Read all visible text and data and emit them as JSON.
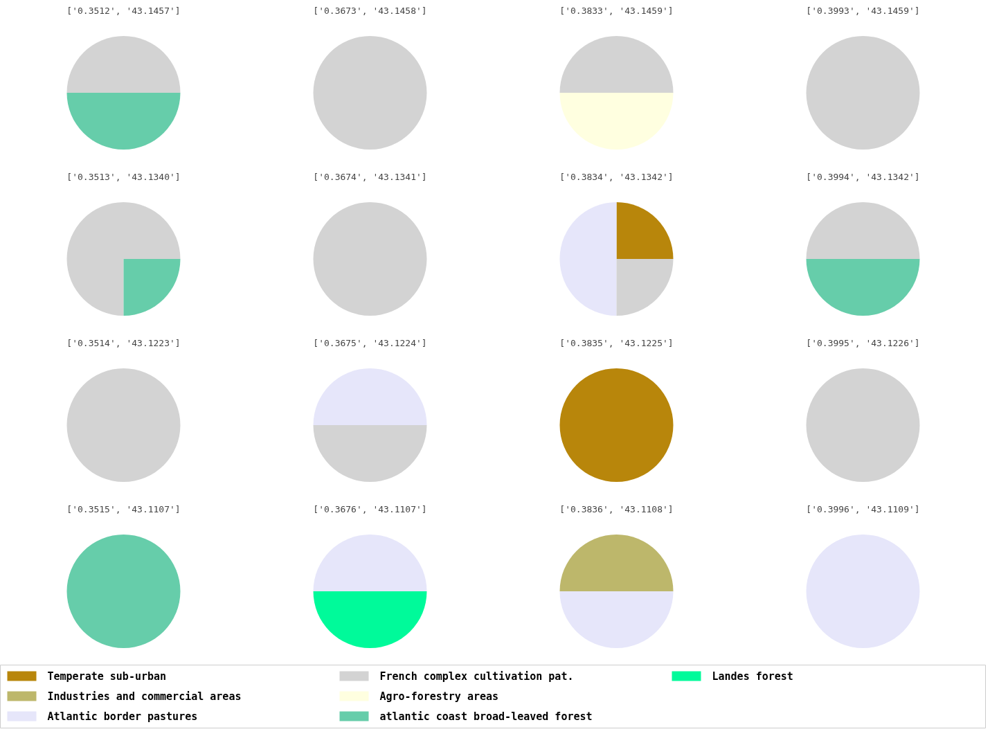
{
  "chart_data": [
    {
      "type": "pie",
      "title": "['0.3512', '43.1457']",
      "categories": [
        "Temperate sub-urban",
        "Industries and commercial areas",
        "Atlantic border pastures",
        "French complex cultivation pat.",
        "Agro-forestry areas",
        "atlantic coast broad-leaved forest",
        "Landes forest"
      ],
      "values": [
        0,
        0,
        0,
        50,
        0,
        50,
        0
      ],
      "colors": [
        "#b8860b",
        "#bdb76b",
        "#e6e6fa",
        "#d3d3d3",
        "#ffffe0",
        "#66cdaa",
        "#00fa9a"
      ],
      "legend": "bottom"
    },
    {
      "type": "pie",
      "title": "['0.3673', '43.1458']",
      "categories": [
        null
      ],
      "values": [
        100
      ],
      "colors": [
        "#d3d3d3"
      ]
    },
    {
      "type": "pie",
      "title": "['0.3833', '43.1459']",
      "categories": [
        null,
        null
      ],
      "values": [
        50,
        50
      ],
      "colors": [
        "#d3d3d3",
        "#ffffe0"
      ]
    },
    {
      "type": "pie",
      "title": "['0.3993', '43.1459']",
      "categories": [
        null
      ],
      "values": [
        100
      ],
      "colors": [
        "#d3d3d3"
      ]
    },
    {
      "type": "pie",
      "title": "['0.3513', '43.1340']",
      "categories": [
        null,
        null
      ],
      "values": [
        75,
        25
      ],
      "colors": [
        "#d3d3d3",
        "#66cdaa"
      ]
    },
    {
      "type": "pie",
      "title": "['0.3674', '43.1341']",
      "categories": [
        null
      ],
      "values": [
        100
      ],
      "colors": [
        "#d3d3d3"
      ]
    },
    {
      "type": "pie",
      "title": "['0.3834', '43.1342']",
      "categories": [
        null,
        null,
        null
      ],
      "values": [
        25,
        50,
        25
      ],
      "colors": [
        "#b8860b",
        "#e6e6fa",
        "#d3d3d3"
      ]
    },
    {
      "type": "pie",
      "title": "['0.3994', '43.1342']",
      "categories": [
        null,
        null
      ],
      "values": [
        50,
        50
      ],
      "colors": [
        "#d3d3d3",
        "#66cdaa"
      ]
    },
    {
      "type": "pie",
      "title": "['0.3514', '43.1223']",
      "categories": [
        null
      ],
      "values": [
        100
      ],
      "colors": [
        "#d3d3d3"
      ]
    },
    {
      "type": "pie",
      "title": "['0.3675', '43.1224']",
      "categories": [
        null,
        null
      ],
      "values": [
        50,
        50
      ],
      "colors": [
        "#e6e6fa",
        "#d3d3d3"
      ]
    },
    {
      "type": "pie",
      "title": "['0.3835', '43.1225']",
      "categories": [
        null
      ],
      "values": [
        100
      ],
      "colors": [
        "#b8860b"
      ]
    },
    {
      "type": "pie",
      "title": "['0.3995', '43.1226']",
      "categories": [
        null
      ],
      "values": [
        100
      ],
      "colors": [
        "#d3d3d3"
      ]
    },
    {
      "type": "pie",
      "title": "['0.3515', '43.1107']",
      "categories": [
        null
      ],
      "values": [
        100
      ],
      "colors": [
        "#66cdaa"
      ]
    },
    {
      "type": "pie",
      "title": "['0.3676', '43.1107']",
      "categories": [
        null,
        null
      ],
      "values": [
        50,
        50
      ],
      "colors": [
        "#e6e6fa",
        "#00fa9a"
      ]
    },
    {
      "type": "pie",
      "title": "['0.3836', '43.1108']",
      "categories": [
        null,
        null
      ],
      "values": [
        50,
        50
      ],
      "colors": [
        "#bdb76b",
        "#e6e6fa"
      ]
    },
    {
      "type": "pie",
      "title": "['0.3996', '43.1109']",
      "categories": [
        null
      ],
      "values": [
        100
      ],
      "colors": [
        "#e6e6fa"
      ]
    }
  ]
}
